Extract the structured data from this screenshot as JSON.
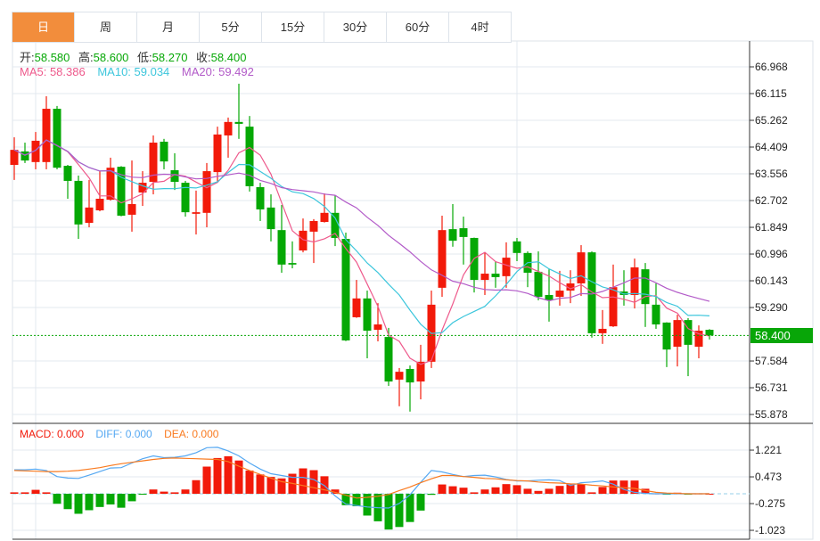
{
  "tabs": [
    {
      "label": "日",
      "active": true
    },
    {
      "label": "周"
    },
    {
      "label": "月"
    },
    {
      "label": "5分"
    },
    {
      "label": "15分"
    },
    {
      "label": "30分"
    },
    {
      "label": "60分"
    },
    {
      "label": "4时"
    }
  ],
  "info": {
    "open_label": "开:",
    "open": "58.580",
    "high_label": "高:",
    "high": "58.600",
    "low_label": "低:",
    "low": "58.270",
    "close_label": "收:",
    "close": "58.400"
  },
  "ma": {
    "ma5": "MA5: 58.386",
    "ma10": "MA10: 59.034",
    "ma20": "MA20: 59.492"
  },
  "macd_legend": {
    "macd": "MACD: 0.000",
    "diff": "DIFF: 0.000",
    "dea": "DEA: 0.000"
  },
  "current_price": "58.400",
  "colors": {
    "up": "#f21a0a",
    "down": "#05a805",
    "ma5": "#ee5a8c",
    "ma10": "#3cc6dc",
    "ma20": "#b25ac8",
    "diff": "#55a8f2",
    "dea": "#f97a1f",
    "accent": "#f28d3c"
  },
  "chart_data": [
    {
      "type": "candlestick",
      "title": "Daily K-line",
      "y_ticks": [
        "66.968",
        "66.115",
        "65.262",
        "64.409",
        "63.556",
        "62.702",
        "61.849",
        "60.996",
        "60.143",
        "59.290",
        "57.584",
        "56.731",
        "55.878"
      ],
      "ylim": [
        55.878,
        66.968
      ],
      "ohlc": [
        [
          63.84,
          64.32,
          64.72,
          63.36
        ],
        [
          64.27,
          63.98,
          64.55,
          63.9
        ],
        [
          63.93,
          64.61,
          64.89,
          63.7
        ],
        [
          63.93,
          65.63,
          66.03,
          63.7
        ],
        [
          65.63,
          63.75,
          65.72,
          63.7
        ],
        [
          63.81,
          63.33,
          63.84,
          62.76
        ],
        [
          63.33,
          61.94,
          63.5,
          61.48
        ],
        [
          61.99,
          62.48,
          63.36,
          61.85
        ],
        [
          62.39,
          62.76,
          63.64,
          62.36
        ],
        [
          62.73,
          63.75,
          64.07,
          62.7
        ],
        [
          63.78,
          62.22,
          63.8,
          62.2
        ],
        [
          62.25,
          62.59,
          63.98,
          61.71
        ],
        [
          62.96,
          63.27,
          63.64,
          62.53
        ],
        [
          63.3,
          64.55,
          64.78,
          62.9
        ],
        [
          64.58,
          63.95,
          64.67,
          63.7
        ],
        [
          63.67,
          63.3,
          64.21,
          63.04
        ],
        [
          63.27,
          62.33,
          63.33,
          62.19
        ],
        [
          62.28,
          62.33,
          63.02,
          61.62
        ],
        [
          62.31,
          63.64,
          63.9,
          61.85
        ],
        [
          63.61,
          64.81,
          65.06,
          63.27
        ],
        [
          64.78,
          65.21,
          65.35,
          64.07
        ],
        [
          65.21,
          65.15,
          66.43,
          64.67
        ],
        [
          65.06,
          63.16,
          65.4,
          62.99
        ],
        [
          63.13,
          62.42,
          63.27,
          62.05
        ],
        [
          62.48,
          61.79,
          62.9,
          61.4
        ],
        [
          61.76,
          60.66,
          62.56,
          60.4
        ],
        [
          60.71,
          60.66,
          61.4,
          60.54
        ],
        [
          61.11,
          61.74,
          62.13,
          61.05
        ],
        [
          61.71,
          62.05,
          62.11,
          60.71
        ],
        [
          62.02,
          62.31,
          62.93,
          62.0
        ],
        [
          62.31,
          61.51,
          62.87,
          61.25
        ],
        [
          61.48,
          58.24,
          61.68,
          58.22
        ],
        [
          58.98,
          59.58,
          60.17,
          58.96
        ],
        [
          59.58,
          58.55,
          59.83,
          57.67
        ],
        [
          58.58,
          58.75,
          59.43,
          58.21
        ],
        [
          58.35,
          56.93,
          58.64,
          56.79
        ],
        [
          56.99,
          57.24,
          57.36,
          56.14
        ],
        [
          57.33,
          56.9,
          57.44,
          55.97
        ],
        [
          56.93,
          57.56,
          58.1,
          56.36
        ],
        [
          57.56,
          59.38,
          59.83,
          57.36
        ],
        [
          59.92,
          61.76,
          62.22,
          59.63
        ],
        [
          61.79,
          61.42,
          62.59,
          61.23
        ],
        [
          61.82,
          61.54,
          62.19,
          60.66
        ],
        [
          61.51,
          60.17,
          61.52,
          59.77
        ],
        [
          60.17,
          60.37,
          61.05,
          59.69
        ],
        [
          60.37,
          60.26,
          60.77,
          59.92
        ],
        [
          60.29,
          60.88,
          61.37,
          59.92
        ],
        [
          61.4,
          61.03,
          61.51,
          60.77
        ],
        [
          61.03,
          60.4,
          61.08,
          59.94
        ],
        [
          60.43,
          59.63,
          61.08,
          59.52
        ],
        [
          59.69,
          59.52,
          60.51,
          58.84
        ],
        [
          59.63,
          59.83,
          60.46,
          59.35
        ],
        [
          59.83,
          60.06,
          60.48,
          59.43
        ],
        [
          60.06,
          61.05,
          61.28,
          59.66
        ],
        [
          61.05,
          58.47,
          61.08,
          58.33
        ],
        [
          58.47,
          58.61,
          59.21,
          58.13
        ],
        [
          58.69,
          59.94,
          60.66,
          58.67
        ],
        [
          59.8,
          59.69,
          60.48,
          59.35
        ],
        [
          59.69,
          60.57,
          60.85,
          59.26
        ],
        [
          60.51,
          59.4,
          60.71,
          58.67
        ],
        [
          59.38,
          58.75,
          60.06,
          58.61
        ],
        [
          58.81,
          57.95,
          58.82,
          57.39
        ],
        [
          58.04,
          58.89,
          59.06,
          57.41
        ],
        [
          58.89,
          58.1,
          58.95,
          57.1
        ],
        [
          58.04,
          58.55,
          58.72,
          57.67
        ],
        [
          58.58,
          58.4,
          58.6,
          58.27
        ]
      ]
    },
    {
      "type": "bar+line",
      "title": "MACD",
      "y_ticks": [
        "1.221",
        "0.473",
        "-0.275",
        "-1.023"
      ],
      "ylim": [
        -1.023,
        1.221
      ],
      "macd": [
        0.04,
        0.04,
        0.11,
        0.04,
        -0.28,
        -0.43,
        -0.56,
        -0.46,
        -0.37,
        -0.3,
        -0.39,
        -0.21,
        -0.02,
        0.12,
        0.06,
        0.04,
        0.12,
        0.38,
        0.76,
        1.0,
        1.05,
        0.93,
        0.65,
        0.54,
        0.47,
        0.43,
        0.56,
        0.71,
        0.66,
        0.49,
        0.12,
        -0.32,
        -0.35,
        -0.61,
        -0.77,
        -1.0,
        -0.93,
        -0.79,
        -0.47,
        -0.03,
        0.26,
        0.21,
        0.17,
        0.04,
        0.12,
        0.18,
        0.27,
        0.24,
        0.14,
        0.08,
        0.14,
        0.22,
        0.26,
        0.27,
        0.04,
        0.19,
        0.37,
        0.37,
        0.37,
        0.14,
        0.01,
        -0.02,
        0.03,
        -0.01,
        0.01,
        0.0
      ],
      "diff": [
        0.67,
        0.67,
        0.69,
        0.65,
        0.48,
        0.44,
        0.43,
        0.52,
        0.62,
        0.72,
        0.73,
        0.86,
        0.98,
        1.06,
        1.01,
        1.02,
        1.06,
        1.15,
        1.29,
        1.3,
        1.2,
        1.06,
        0.86,
        0.69,
        0.56,
        0.51,
        0.46,
        0.46,
        0.4,
        0.23,
        -0.06,
        -0.29,
        -0.33,
        -0.37,
        -0.39,
        -0.4,
        -0.27,
        -0.03,
        0.32,
        0.65,
        0.61,
        0.54,
        0.48,
        0.51,
        0.52,
        0.47,
        0.4,
        0.36,
        0.36,
        0.38,
        0.39,
        0.37,
        0.23,
        0.31,
        0.33,
        0.36,
        0.27,
        0.12,
        0.04,
        0.01,
        0,
        0,
        0,
        0,
        0,
        0
      ],
      "dea": [
        0.65,
        0.64,
        0.63,
        0.62,
        0.62,
        0.63,
        0.65,
        0.69,
        0.73,
        0.79,
        0.84,
        0.88,
        0.92,
        0.96,
        0.99,
        1.0,
        0.99,
        0.98,
        0.97,
        0.96,
        0.9,
        0.77,
        0.65,
        0.54,
        0.44,
        0.34,
        0.29,
        0.23,
        0.17,
        0.11,
        0.04,
        -0.04,
        -0.12,
        -0.1,
        -0.07,
        -0.02,
        0.09,
        0.19,
        0.31,
        0.42,
        0.51,
        0.51,
        0.48,
        0.46,
        0.43,
        0.42,
        0.39,
        0.37,
        0.36,
        0.33,
        0.31,
        0.3,
        0.28,
        0.27,
        0.24,
        0.22,
        0.19,
        0.17,
        0.15,
        0.09,
        0.04,
        0.02,
        0.01,
        0,
        0,
        0
      ]
    }
  ]
}
